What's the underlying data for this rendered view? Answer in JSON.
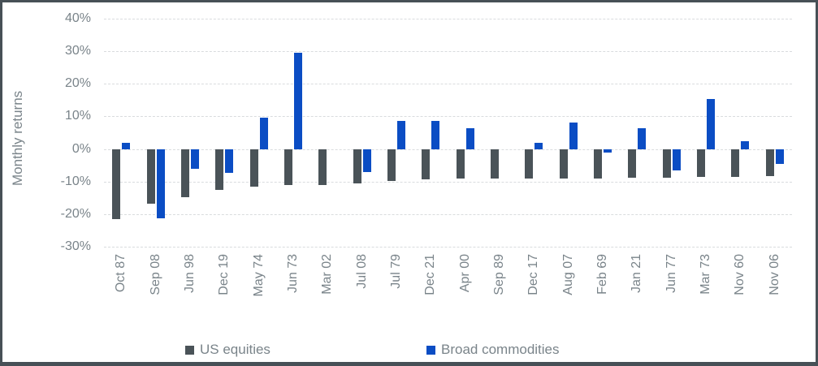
{
  "chart_data": {
    "type": "bar",
    "title": "",
    "xlabel": "",
    "ylabel": "Monthly returns",
    "ylim": [
      -30,
      40
    ],
    "grid": true,
    "legend_position": "bottom",
    "yticks": [
      {
        "value": 40,
        "label": "40%"
      },
      {
        "value": 30,
        "label": "30%"
      },
      {
        "value": 20,
        "label": "20%"
      },
      {
        "value": 10,
        "label": "10%"
      },
      {
        "value": 0,
        "label": "0%"
      },
      {
        "value": -10,
        "label": "-10%"
      },
      {
        "value": -20,
        "label": "-20%"
      },
      {
        "value": -30,
        "label": "-30%"
      }
    ],
    "categories": [
      "Oct 87",
      "Sep 08",
      "Jun 98",
      "Dec 19",
      "May 74",
      "Jun 73",
      "Mar 02",
      "Jul 08",
      "Jul 79",
      "Dec 21",
      "Apr 00",
      "Sep 89",
      "Dec 17",
      "Aug 07",
      "Feb 69",
      "Jan 21",
      "Jun 77",
      "Mar 73",
      "Nov 60",
      "Nov 06"
    ],
    "series": [
      {
        "name": "US equities",
        "color": "#4a5358",
        "values": [
          -21.5,
          -16.7,
          -14.8,
          -12.5,
          -11.6,
          -11.0,
          -11.0,
          -10.6,
          -9.7,
          -9.3,
          -9.2,
          -9.2,
          -9.1,
          -9.0,
          -9.0,
          -8.9,
          -8.9,
          -8.7,
          -8.5,
          -8.3
        ]
      },
      {
        "name": "Broad commodities",
        "color": "#0b4dc4",
        "values": [
          2.0,
          -21.3,
          -6.0,
          -7.3,
          9.6,
          29.5,
          0.0,
          -7.0,
          8.7,
          8.7,
          6.4,
          0.0,
          1.8,
          8.0,
          -1.0,
          6.4,
          -6.7,
          15.4,
          2.3,
          -4.6
        ]
      }
    ]
  },
  "colors": {
    "gridline": "#d9dcde",
    "axis_text": "#7a848a",
    "frame": "#475056"
  }
}
